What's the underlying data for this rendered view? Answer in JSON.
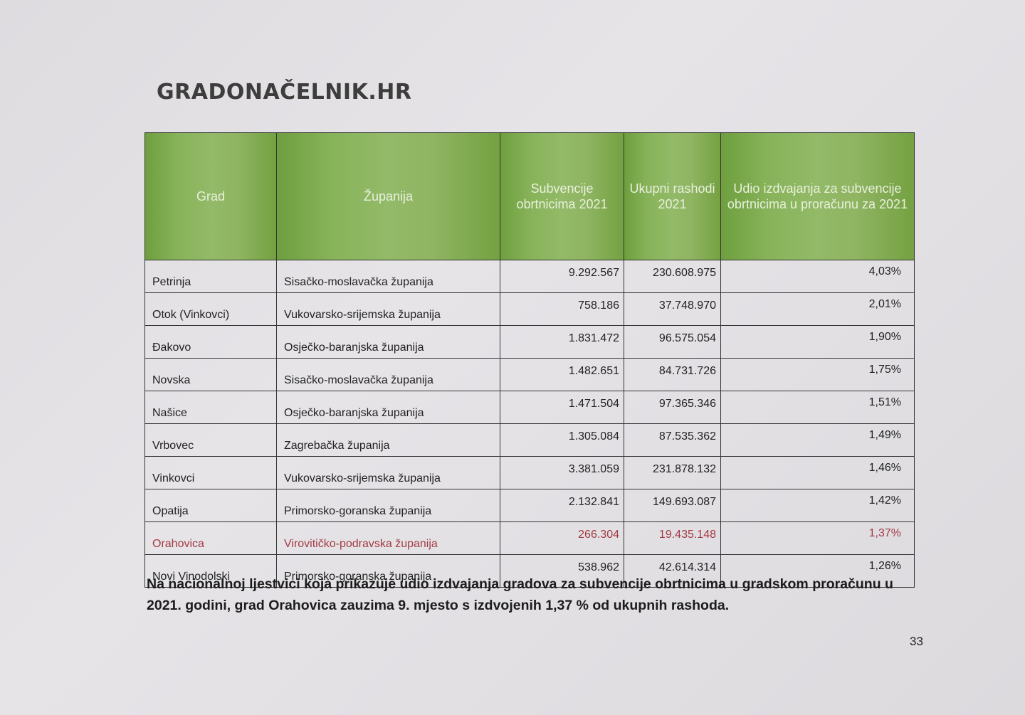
{
  "logo": "GRADONAČELNIK.HR",
  "table": {
    "headers": [
      "Grad",
      "Županija",
      "Subvencije obrtnicima 2021",
      "Ukupni rashodi 2021",
      "Udio izdvajanja za subvencije obrtnicima u proračunu za 2021"
    ],
    "header_color": "#88b35a",
    "highlight_color": "#a33a45",
    "rows": [
      {
        "grad": "Petrinja",
        "zupanija": "Sisačko-moslavačka županija",
        "subvencije": "9.292.567",
        "rashodi": "230.608.975",
        "udio": "4,03%"
      },
      {
        "grad": "Otok (Vinkovci)",
        "zupanija": "Vukovarsko-srijemska županija",
        "subvencije": "758.186",
        "rashodi": "37.748.970",
        "udio": "2,01%"
      },
      {
        "grad": "Đakovo",
        "zupanija": "Osječko-baranjska županija",
        "subvencije": "1.831.472",
        "rashodi": "96.575.054",
        "udio": "1,90%"
      },
      {
        "grad": "Novska",
        "zupanija": "Sisačko-moslavačka županija",
        "subvencije": "1.482.651",
        "rashodi": "84.731.726",
        "udio": "1,75%"
      },
      {
        "grad": "Našice",
        "zupanija": "Osječko-baranjska županija",
        "subvencije": "1.471.504",
        "rashodi": "97.365.346",
        "udio": "1,51%"
      },
      {
        "grad": "Vrbovec",
        "zupanija": "Zagrebačka županija",
        "subvencije": "1.305.084",
        "rashodi": "87.535.362",
        "udio": "1,49%"
      },
      {
        "grad": "Vinkovci",
        "zupanija": "Vukovarsko-srijemska županija",
        "subvencije": "3.381.059",
        "rashodi": "231.878.132",
        "udio": "1,46%"
      },
      {
        "grad": "Opatija",
        "zupanija": "Primorsko-goranska županija",
        "subvencije": "2.132.841",
        "rashodi": "149.693.087",
        "udio": "1,42%"
      },
      {
        "grad": "Orahovica",
        "zupanija": "Virovitičko-podravska županija",
        "subvencije": "266.304",
        "rashodi": "19.435.148",
        "udio": "1,37%",
        "highlight": true
      },
      {
        "grad": "Novi Vinodolski",
        "zupanija": "Primorsko-goranska županija",
        "subvencije": "538.962",
        "rashodi": "42.614.314",
        "udio": "1,26%"
      }
    ]
  },
  "paragraph": "Na nacionalnoj ljestvici koja prikazuje udio izdvajanja gradova za subvencije obrtnicima u gradskom proračunu u 2021. godini, grad Orahovica zauzima 9. mjesto s izdvojenih 1,37 % od ukupnih rashoda.",
  "page_number": "33"
}
